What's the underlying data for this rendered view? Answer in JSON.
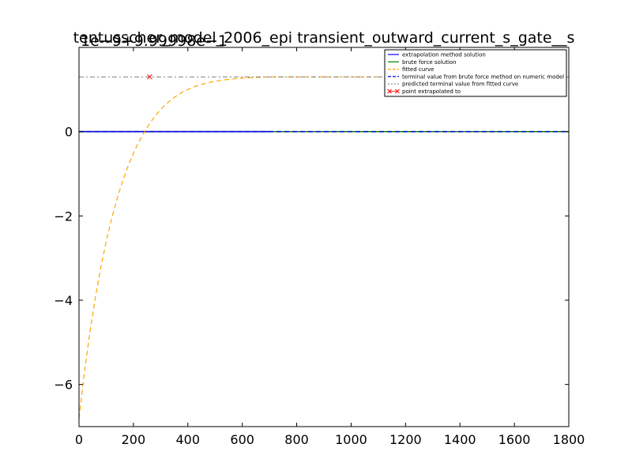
{
  "chart_data": {
    "type": "line",
    "title": "tentusscher_model_2006_epi transient_outward_current_s_gate__s",
    "offset_label": "1e−9+9.99998e−1",
    "xlabel": "",
    "ylabel": "",
    "xlim": [
      0,
      1800
    ],
    "ylim": [
      -7,
      2
    ],
    "x_ticks": [
      0,
      200,
      400,
      600,
      800,
      1000,
      1200,
      1400,
      1600,
      1800
    ],
    "y_ticks": [
      -6,
      -4,
      -2,
      0
    ],
    "x_tick_labels": [
      "0",
      "200",
      "400",
      "600",
      "800",
      "1000",
      "1200",
      "1400",
      "1600",
      "1800"
    ],
    "y_tick_labels": [
      "−6",
      "−4",
      "−2",
      "0"
    ],
    "legend_position": "top-right",
    "legend": [
      "extrapolation method solution",
      "brute force solution",
      "fitted curve",
      "terminal value from brute force method on numeric model",
      "predicted terminal value from fitted curve",
      "point extrapolated to"
    ],
    "series": [
      {
        "name": "extrapolation method solution",
        "color": "#0000ff",
        "style": "solid",
        "x": [
          0,
          700
        ],
        "y": [
          0,
          0
        ]
      },
      {
        "name": "brute force solution",
        "color": "#008000",
        "style": "solid",
        "x": [
          0,
          1800
        ],
        "y": [
          0,
          0
        ]
      },
      {
        "name": "fitted curve",
        "color": "#ffa500",
        "style": "dashed",
        "x": [
          0,
          20,
          40,
          60,
          80,
          100,
          120,
          140,
          160,
          180,
          200,
          220,
          240,
          260,
          280,
          300,
          340,
          380,
          420,
          460,
          500,
          560,
          620,
          700,
          800,
          900,
          1000,
          1100
        ],
        "y": [
          -6.8,
          -5.71,
          -4.76,
          -3.94,
          -3.23,
          -2.6,
          -2.06,
          -1.59,
          -1.18,
          -0.82,
          -0.51,
          -0.24,
          -0.01,
          0.2,
          0.37,
          0.53,
          0.77,
          0.94,
          1.06,
          1.14,
          1.2,
          1.25,
          1.28,
          1.3,
          1.3,
          1.3,
          1.3,
          1.3
        ]
      },
      {
        "name": "terminal value from brute force method on numeric model",
        "color": "#0000cc",
        "style": "dashed",
        "x": [
          0,
          1800
        ],
        "y": [
          0,
          0
        ]
      },
      {
        "name": "predicted terminal value from fitted curve",
        "color": "#808080",
        "style": "dashdot",
        "x": [
          0,
          1800
        ],
        "y": [
          1.3,
          1.3
        ]
      },
      {
        "name": "point extrapolated to",
        "color": "#ff0000",
        "style": "marker-x",
        "x": [
          260
        ],
        "y": [
          1.3
        ]
      }
    ]
  }
}
